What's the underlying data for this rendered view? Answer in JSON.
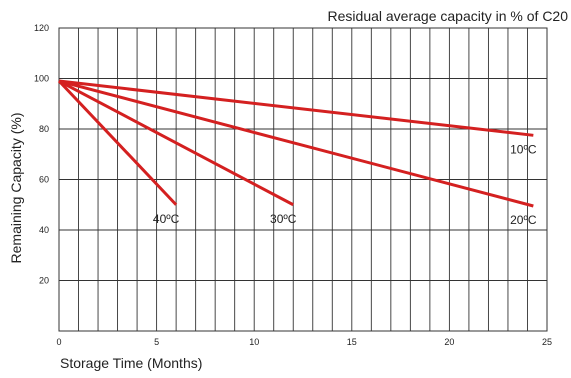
{
  "chart_data": {
    "type": "line",
    "title": "Residual average capacity in % of C20",
    "xlabel": "Storage Time (Months)",
    "ylabel": "Remaining Capacity (%)",
    "xlim": [
      0,
      25
    ],
    "ylim": [
      0,
      120
    ],
    "x_ticks": [
      0,
      5,
      10,
      15,
      20,
      25
    ],
    "y_ticks": [
      20,
      40,
      60,
      80,
      100,
      120
    ],
    "x_grid_step": 1,
    "y_grid_step": 20,
    "grid": true,
    "line_color": "#d42020",
    "series": [
      {
        "name": "10ºC",
        "x": [
          0,
          24.3
        ],
        "y": [
          99,
          77.5
        ]
      },
      {
        "name": "20ºC",
        "x": [
          0,
          24.3
        ],
        "y": [
          99,
          49.5
        ]
      },
      {
        "name": "30ºC",
        "x": [
          0,
          12
        ],
        "y": [
          99,
          50
        ]
      },
      {
        "name": "40ºC",
        "x": [
          0,
          6
        ],
        "y": [
          99,
          50
        ]
      }
    ]
  }
}
